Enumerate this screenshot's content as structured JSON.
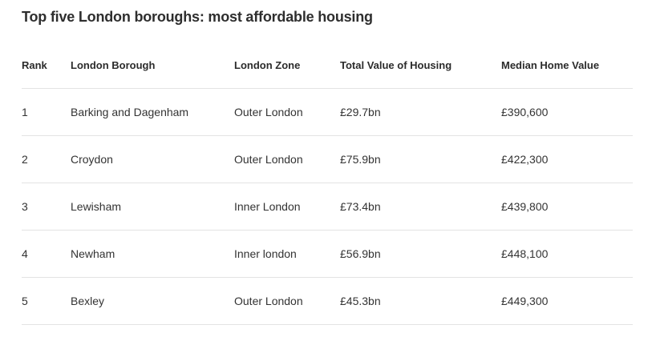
{
  "page": {
    "title": "Top five London boroughs: most affordable housing"
  },
  "table": {
    "columns": [
      "Rank",
      "London Borough",
      "London Zone",
      "Total Value of Housing",
      "Median Home Value"
    ],
    "rows": [
      [
        "1",
        "Barking and Dagenham",
        "Outer London",
        "£29.7bn",
        "£390,600"
      ],
      [
        "2",
        "Croydon",
        "Outer London",
        "£75.9bn",
        "£422,300"
      ],
      [
        "3",
        "Lewisham",
        "Inner London",
        "£73.4bn",
        "£439,800"
      ],
      [
        "4",
        "Newham",
        "Inner london",
        "£56.9bn",
        "£448,100"
      ],
      [
        "5",
        "Bexley",
        "Outer London",
        "£45.3bn",
        "£449,300"
      ]
    ]
  }
}
